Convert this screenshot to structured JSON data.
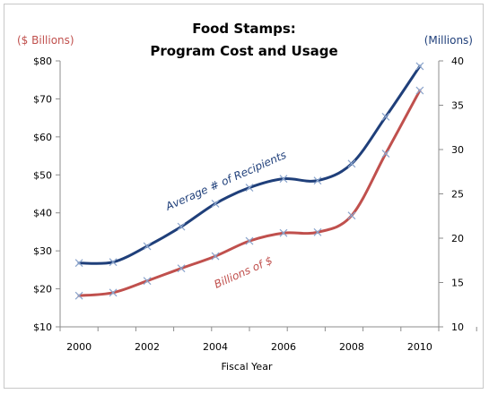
{
  "chart_data": {
    "type": "line",
    "title_line1": "Food Stamps:",
    "title_line2": "Program Cost and Usage",
    "xlabel": "Fiscal Year",
    "left_axis_label": "($ Billions)",
    "right_axis_label": "(Millions)",
    "x": [
      2000,
      2001,
      2002,
      2003,
      2004,
      2005,
      2006,
      2007,
      2008,
      2009,
      2010
    ],
    "x_tick_labels": [
      "2000",
      "2002",
      "2004",
      "2006",
      "2008",
      "2010"
    ],
    "y_left": {
      "min": 10,
      "max": 80,
      "ticks": [
        "$10",
        "$20",
        "$30",
        "$40",
        "$50",
        "$60",
        "$70",
        "$80"
      ]
    },
    "y_right": {
      "min": 10,
      "max": 40,
      "ticks": [
        "10",
        "15",
        "20",
        "25",
        "30",
        "35",
        "40"
      ]
    },
    "series": [
      {
        "name": "Average # of Recipients",
        "axis": "right",
        "color": "#1f3f7a",
        "values": [
          17.2,
          17.3,
          19.1,
          21.3,
          23.9,
          25.7,
          26.7,
          26.5,
          28.4,
          33.7,
          39.4
        ]
      },
      {
        "name": "Billions of $",
        "axis": "left",
        "color": "#c0504d",
        "values": [
          18.2,
          19.0,
          22.1,
          25.4,
          28.6,
          32.6,
          34.7,
          34.9,
          39.3,
          55.6,
          72.2
        ]
      }
    ],
    "colors": {
      "left_axis_label": "#c0504d",
      "right_axis_label": "#1f3f7a",
      "axis_line": "#8c8c8c"
    },
    "grid": false
  }
}
